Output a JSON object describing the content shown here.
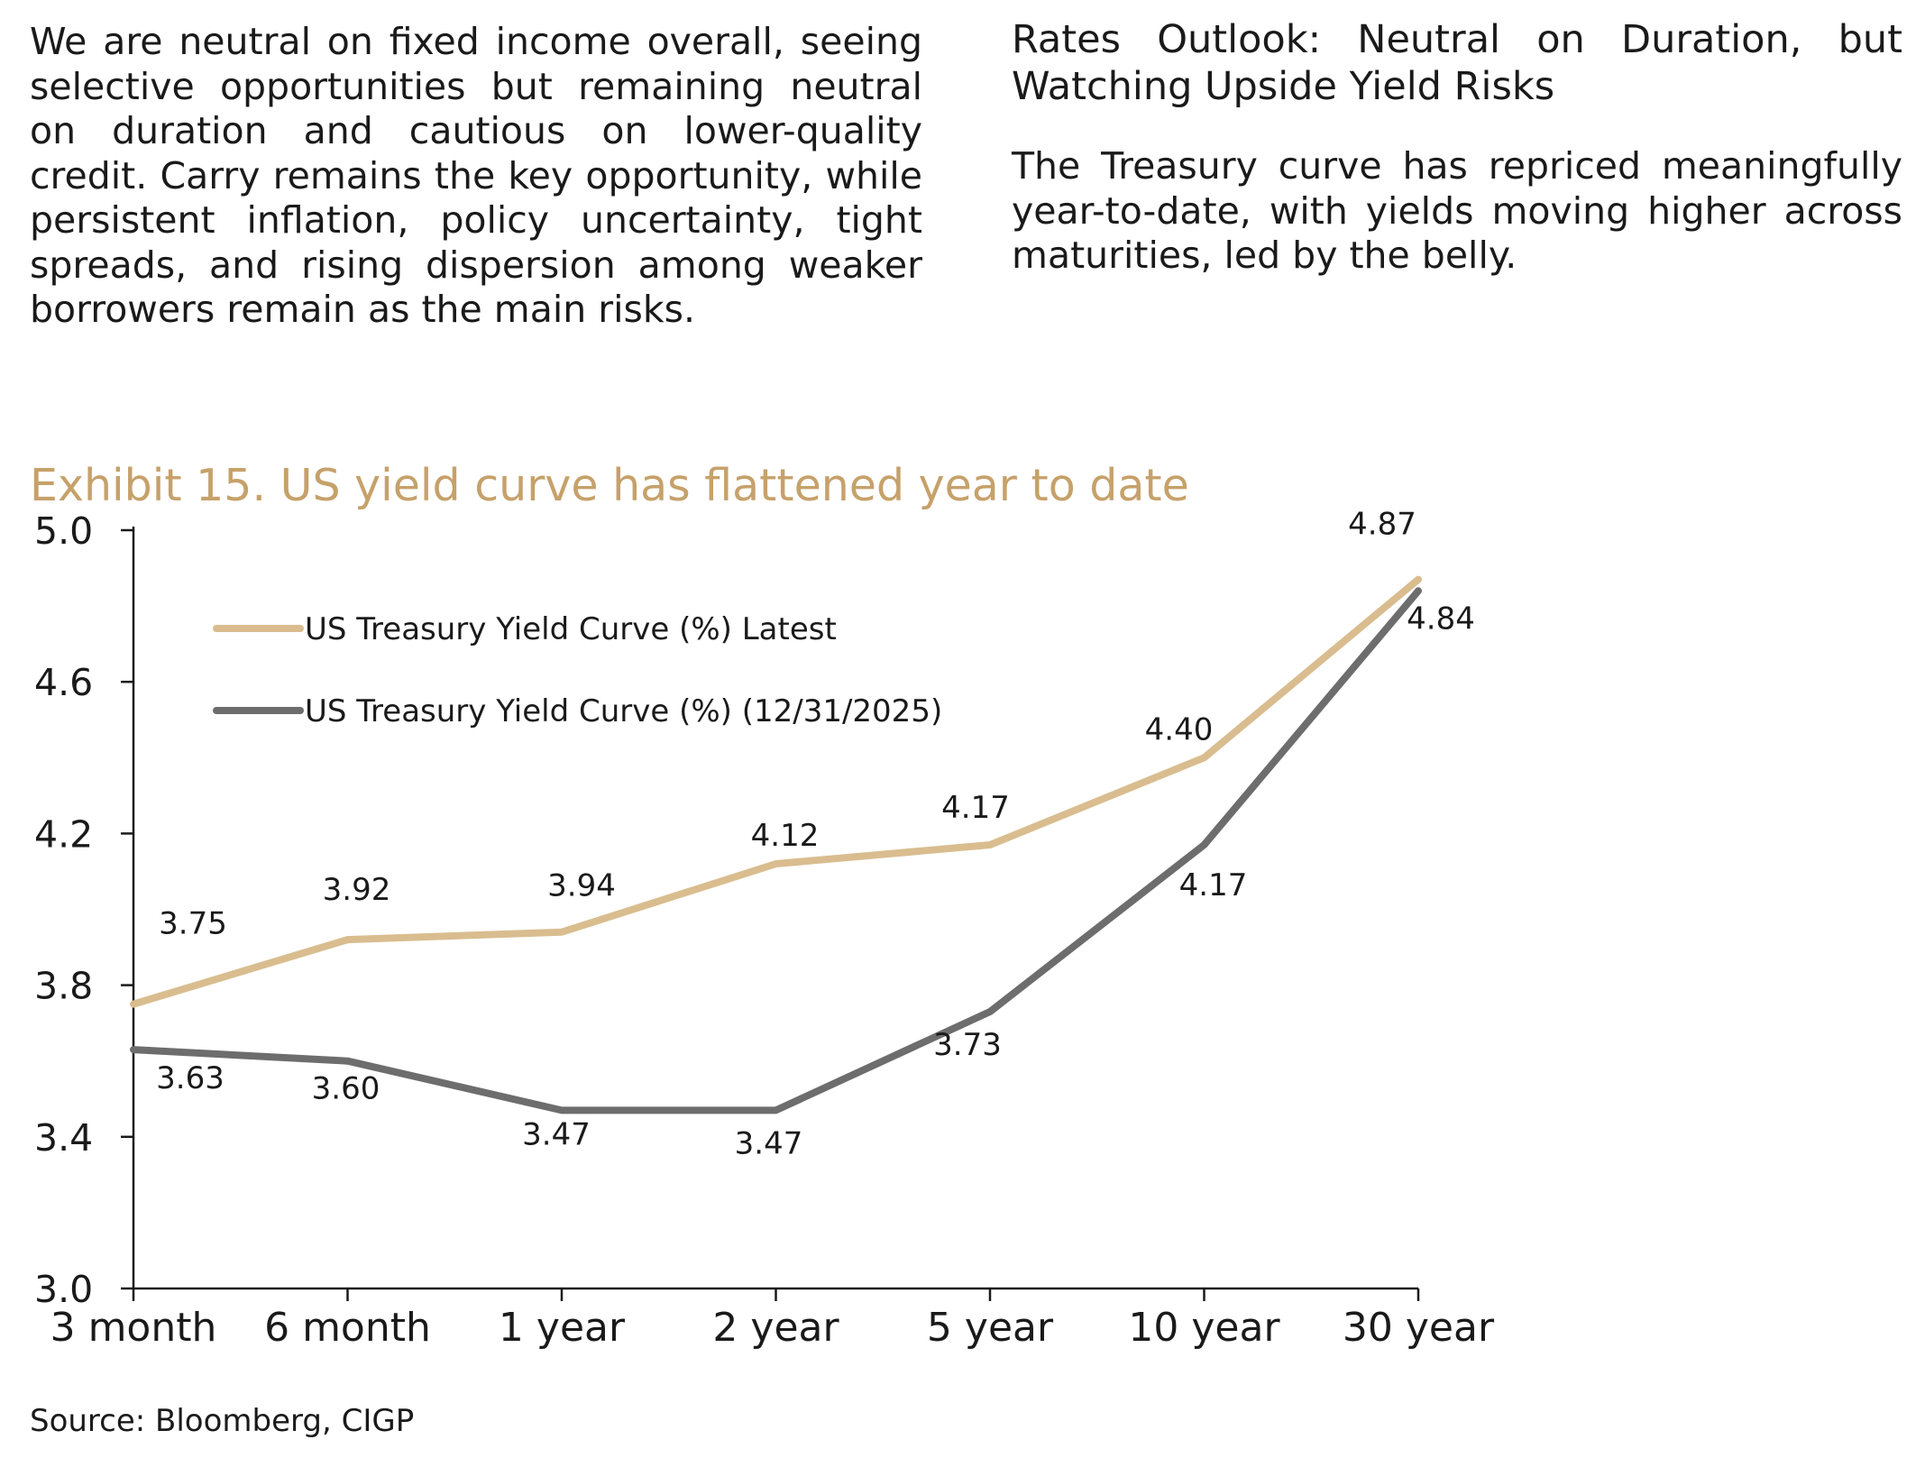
{
  "text": {
    "left_paragraph": "We are neutral on fixed income overall, seeing selective opportunities but remaining neutral on duration and cautious on lower-quality credit. Carry remains the key opportunity, while persistent inflation, policy uncertainty, tight spreads, and rising dispersion among weaker borrowers remain as the main risks.",
    "right_heading": "Rates Outlook: Neutral on Duration, but Watching Upside Yield Risks",
    "right_paragraph": "The Treasury curve has repriced meaningfully year-to-date, with yields moving higher across maturities, led by the belly.",
    "exhibit_title": "Exhibit 15. US yield curve has flattened year to date",
    "source": "Source: Bloomberg, CIGP"
  },
  "colors": {
    "title_gold": "#c6a16a",
    "latest_series": "#d9bd8f",
    "prior_series": "#6d6d6d",
    "axis": "#1a1a1a"
  },
  "chart_data": {
    "type": "line",
    "title": "Exhibit 15. US yield curve has flattened year to date",
    "categories": [
      "3 month",
      "6 month",
      "1 year",
      "2 year",
      "5 year",
      "10 year",
      "30 year"
    ],
    "series": [
      {
        "name": "US Treasury Yield Curve (%) Latest",
        "values": [
          3.75,
          3.92,
          3.94,
          4.12,
          4.17,
          4.4,
          4.87
        ],
        "labels": [
          "3.75",
          "3.92",
          "3.94",
          "4.12",
          "4.17",
          "4.40",
          "4.87"
        ]
      },
      {
        "name": "US Treasury Yield Curve (%) (12/31/2025)",
        "values": [
          3.63,
          3.6,
          3.47,
          3.47,
          3.73,
          4.17,
          4.84
        ],
        "labels": [
          "3.63",
          "3.60",
          "3.47",
          "3.47",
          "3.73",
          "4.17",
          "4.84"
        ]
      }
    ],
    "ylim": [
      3.0,
      5.0
    ],
    "yticks": [
      "3.0",
      "3.4",
      "3.8",
      "4.2",
      "4.6",
      "5.0"
    ],
    "ytick_values": [
      3.0,
      3.4,
      3.8,
      4.2,
      4.6,
      5.0
    ],
    "grid": false,
    "legend": "top-left"
  }
}
